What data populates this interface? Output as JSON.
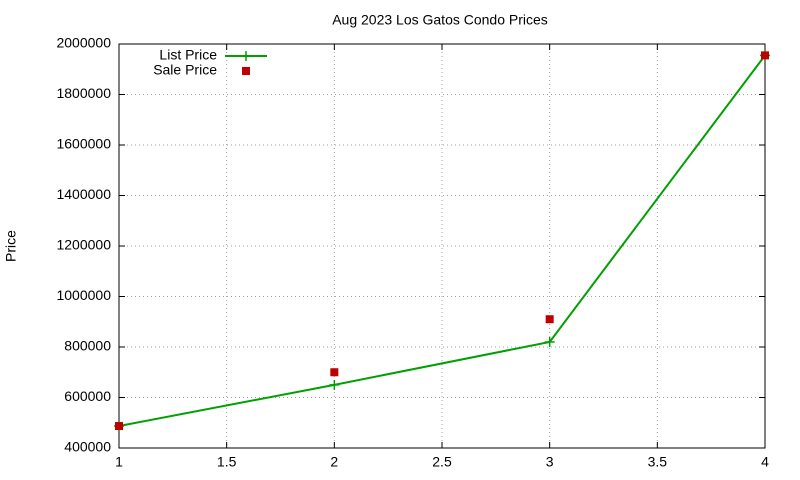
{
  "chart_data": {
    "type": "line",
    "title": "Aug 2023 Los Gatos Condo Prices",
    "y_label": "Price",
    "x": [
      1,
      2,
      3,
      4
    ],
    "series": [
      {
        "name": "List Price",
        "color": "#00a000",
        "style": "linespoints",
        "values": [
          487000,
          650000,
          820000,
          1955000
        ]
      },
      {
        "name": "Sale Price",
        "color": "#c00000",
        "style": "points",
        "values": [
          487000,
          700000,
          910000,
          1955000
        ]
      }
    ],
    "xlim": [
      1,
      4
    ],
    "xticks": [
      1,
      1.5,
      2,
      2.5,
      3,
      3.5,
      4
    ],
    "ylim": [
      400000,
      2000000
    ],
    "yticks": [
      400000,
      600000,
      800000,
      1000000,
      1200000,
      1400000,
      1600000,
      1800000,
      2000000
    ],
    "grid": true,
    "legend": "top-left"
  }
}
